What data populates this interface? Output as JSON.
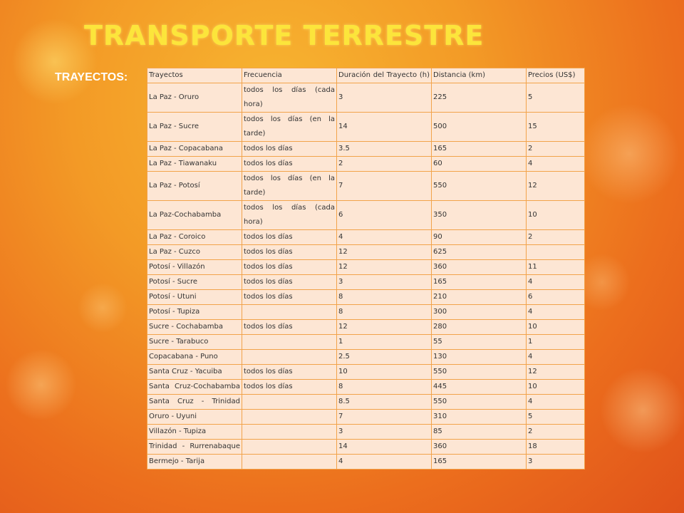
{
  "page": {
    "title": "TRANSPORTE TERRESTRE",
    "subtitle": "TRAYECTOS:"
  },
  "table": {
    "headers": [
      "Trayectos",
      "Frecuencia",
      "Duración del Trayecto (h)",
      "Distancia (km)",
      "Precios (US$)"
    ],
    "rows": [
      [
        "La Paz - Oruro",
        "todos los días (cada hora)",
        "3",
        "225",
        "5"
      ],
      [
        "La Paz - Sucre",
        "todos los días (en la tarde)",
        "14",
        "500",
        "15"
      ],
      [
        "La Paz - Copacabana",
        "todos los días",
        "3.5",
        "165",
        "2"
      ],
      [
        "La Paz - Tiawanaku",
        "todos los días",
        "2",
        "60",
        "4"
      ],
      [
        "La Paz - Potosí",
        "todos los días (en la tarde)",
        "7",
        "550",
        "12"
      ],
      [
        "La Paz-Cochabamba",
        "todos los días (cada hora)",
        "6",
        "350",
        "10"
      ],
      [
        "La Paz - Coroico",
        "todos los días",
        "4",
        "90",
        "2"
      ],
      [
        "La Paz - Cuzco",
        "todos los días",
        "12",
        "625",
        ""
      ],
      [
        "Potosí - Villazón",
        "todos los días",
        "12",
        "360",
        "11"
      ],
      [
        "Potosí - Sucre",
        "todos los días",
        "3",
        "165",
        "4"
      ],
      [
        "Potosí - Utuni",
        "todos los días",
        "8",
        "210",
        "6"
      ],
      [
        "Potosí - Tupiza",
        "",
        "8",
        "300",
        "4"
      ],
      [
        "Sucre - Cochabamba",
        "todos los días",
        "12",
        "280",
        "10"
      ],
      [
        "Sucre - Tarabuco",
        "",
        "1",
        "55",
        "1"
      ],
      [
        "Copacabana - Puno",
        "",
        "2.5",
        "130",
        "4"
      ],
      [
        "Santa Cruz - Yacuiba",
        "todos los días",
        "10",
        "550",
        "12"
      ],
      [
        "Santa Cruz-Cochabamba",
        "todos los días",
        "8",
        "445",
        "10"
      ],
      [
        "Santa Cruz - Trinidad",
        "",
        "8.5",
        "550",
        "4"
      ],
      [
        "Oruro - Uyuni",
        "",
        "7",
        "310",
        "5"
      ],
      [
        "Villazón - Tupiza",
        "",
        "3",
        "85",
        "2"
      ],
      [
        "Trinidad - Rurrenabaque",
        "",
        "14",
        "360",
        "18"
      ],
      [
        "Bermejo - Tarija",
        "",
        "4",
        "165",
        "3"
      ]
    ]
  }
}
